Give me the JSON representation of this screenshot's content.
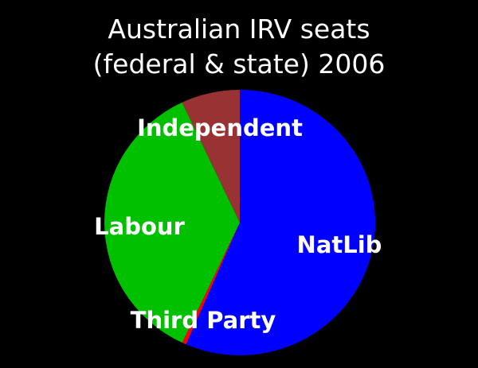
{
  "chart_data": {
    "type": "pie",
    "title_lines": [
      "Australian IRV seats",
      "(federal & state) 2006"
    ],
    "slices": [
      {
        "label": "NatLib",
        "value": 56.5,
        "color": "#0000ff"
      },
      {
        "label": "Third Party",
        "value": 0.5,
        "color": "#ff0000"
      },
      {
        "label": "Labour",
        "value": 36.0,
        "color": "#00c000"
      },
      {
        "label": "Independent",
        "value": 7.0,
        "color": "#993333"
      }
    ],
    "start": "top",
    "direction": "clockwise",
    "legend": "none"
  }
}
